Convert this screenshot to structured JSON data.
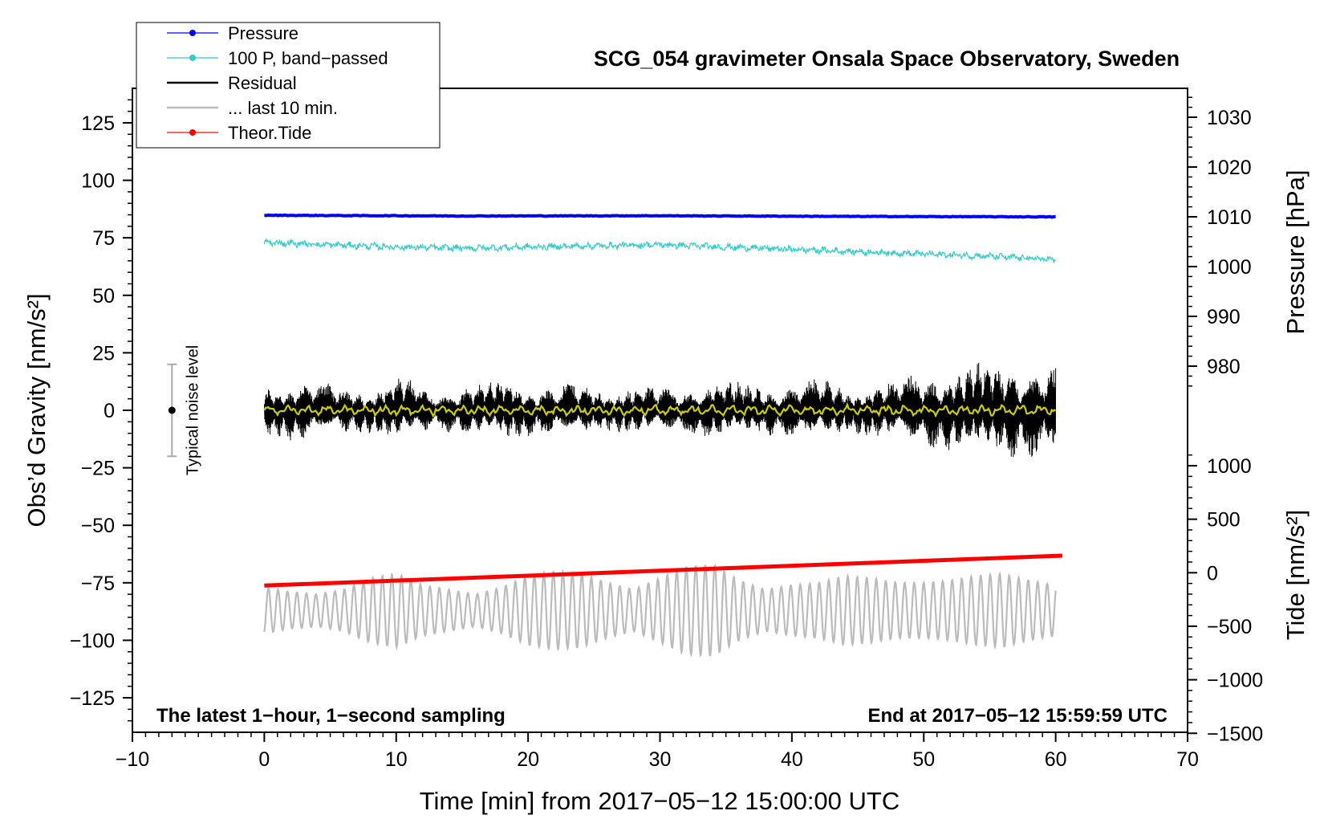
{
  "chart_data": {
    "type": "line",
    "title": "SCG_054 gravimeter Onsala Space Observatory, Sweden",
    "xlabel": "Time [min] from 2017−05−12 15:00:00 UTC",
    "ylabel_left": "Obs’d Gravity [nm/s²]",
    "ylabel_right_top": "Pressure [hPa]",
    "ylabel_right_bottom": "Tide [nm/s²]",
    "xlim": [
      -10,
      70
    ],
    "ylim_left": [
      -140,
      140
    ],
    "x_ticks": [
      -10,
      0,
      10,
      20,
      30,
      40,
      50,
      60,
      70
    ],
    "x_tick_labels": [
      "−10",
      "0",
      "10",
      "20",
      "30",
      "40",
      "50",
      "60",
      "70"
    ],
    "y_left_ticks": [
      125,
      100,
      75,
      50,
      25,
      0,
      -25,
      -50,
      -75,
      -100,
      -125
    ],
    "y_left_tick_labels": [
      "125",
      "100",
      "75",
      "50",
      "25",
      "0",
      "−25",
      "−50",
      "−75",
      "−100",
      "−125"
    ],
    "pressure_ticks": [
      1030,
      1020,
      1010,
      1000,
      990,
      980
    ],
    "pressure_tick_labels": [
      "1030",
      "1020",
      "1010",
      "1000",
      "990",
      "980"
    ],
    "tide_ticks": [
      1000,
      500,
      0,
      -500,
      -1000,
      -1500
    ],
    "tide_tick_labels": [
      "1000",
      "500",
      "0",
      "−500",
      "−1000",
      "−1500"
    ],
    "legend": [
      {
        "label": "Pressure",
        "color": "#0000ff",
        "marker": true
      },
      {
        "label": "100 P, band−passed",
        "color": "#33cccc",
        "marker": true
      },
      {
        "label": "Residual",
        "color": "#000000",
        "marker": false
      },
      {
        "label": "... last 10 min.",
        "color": "#bbbbbb",
        "marker": false
      },
      {
        "label": "Theor.Tide",
        "color": "#ff0000",
        "marker": true
      }
    ],
    "series": [
      {
        "name": "Pressure",
        "units": "left_axis_equivalent",
        "x": [
          0,
          15,
          30,
          45,
          60
        ],
        "values": [
          84.8,
          84.5,
          84.6,
          84.3,
          84.1
        ],
        "color": "#0000ff"
      },
      {
        "name": "100 P, band−passed",
        "x": [
          0,
          5,
          10,
          15,
          20,
          25,
          30,
          35,
          40,
          45,
          50,
          55,
          60
        ],
        "values": [
          73,
          72,
          71,
          70.5,
          71,
          71.5,
          72,
          71,
          70,
          69,
          68,
          67,
          65.5
        ],
        "color": "#33cccc"
      },
      {
        "name": "Residual",
        "x": [
          0,
          60
        ],
        "values": [
          0,
          0
        ],
        "amplitude_envelope": [
          12,
          14,
          12,
          10,
          15,
          9,
          12,
          14,
          11,
          13,
          9,
          12,
          10,
          14,
          12,
          11,
          15,
          10,
          13,
          17,
          19,
          22,
          22,
          20
        ],
        "color": "#000000"
      },
      {
        "name": "Residual smoothed",
        "x": [
          0,
          60
        ],
        "values": [
          0,
          0
        ],
        "color": "#cccc00"
      },
      {
        "name": "Theor.Tide",
        "units": "left_axis_equivalent",
        "x": [
          0,
          60.5
        ],
        "values": [
          -76.2,
          -63.2
        ],
        "color": "#ff0000"
      },
      {
        "name": "... last 10 min.",
        "x": [
          0,
          60
        ],
        "center": -87,
        "amplitude_envelope": [
          10,
          8,
          7,
          9,
          14,
          16,
          11,
          9,
          7,
          10,
          15,
          17,
          16,
          12,
          9,
          14,
          19,
          20,
          13,
          9,
          11,
          12,
          15,
          14,
          12,
          12,
          13,
          15,
          16,
          13,
          11
        ],
        "color": "#bbbbbb"
      }
    ],
    "noise_bar": {
      "label": "Typical noise level",
      "x": -7,
      "center": 0,
      "range": [
        -20,
        20
      ]
    },
    "annotations": {
      "bottom_left": "The latest 1−hour, 1−second sampling",
      "bottom_right": "End at 2017−05−12 15:59:59 UTC"
    }
  }
}
